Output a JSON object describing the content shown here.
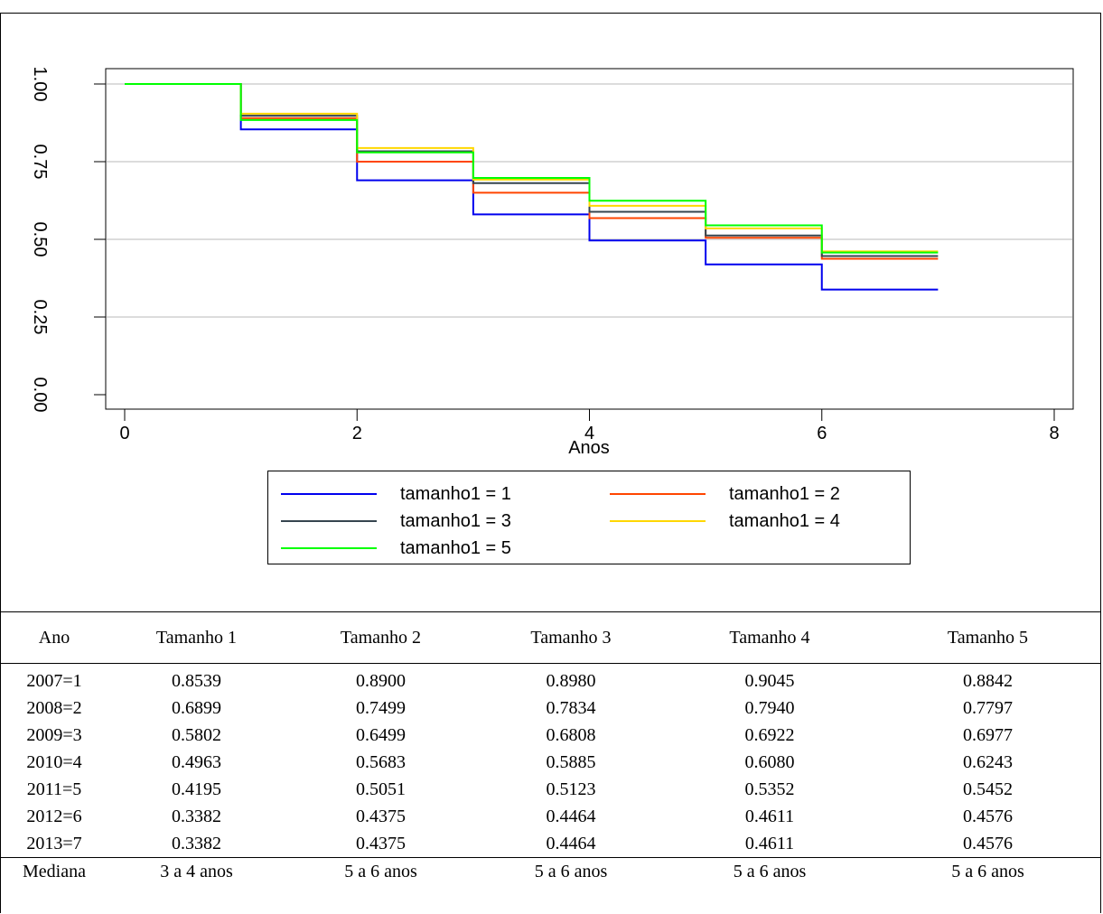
{
  "chart_data": {
    "type": "line",
    "step": true,
    "title": "",
    "xlabel": "Anos",
    "ylabel": "",
    "xlim": [
      0,
      8
    ],
    "ylim": [
      0,
      1
    ],
    "x_ticks": [
      "0",
      "2",
      "4",
      "6",
      "8"
    ],
    "y_ticks": [
      "0.00",
      "0.25",
      "0.50",
      "0.75",
      "1.00"
    ],
    "grid": true,
    "legend_position": "bottom",
    "series": [
      {
        "name": "tamanho1 = 1",
        "color": "#0000ee",
        "x": [
          0,
          1,
          2,
          3,
          4,
          5,
          6,
          7
        ],
        "y": [
          1.0,
          0.8539,
          0.6899,
          0.5802,
          0.4963,
          0.4195,
          0.3382,
          0.3382
        ]
      },
      {
        "name": "tamanho1 = 2",
        "color": "#ff4500",
        "x": [
          0,
          1,
          2,
          3,
          4,
          5,
          6,
          7
        ],
        "y": [
          1.0,
          0.89,
          0.7499,
          0.6499,
          0.5683,
          0.5051,
          0.4375,
          0.4375
        ]
      },
      {
        "name": "tamanho1 = 3",
        "color": "#36454f",
        "x": [
          0,
          1,
          2,
          3,
          4,
          5,
          6,
          7
        ],
        "y": [
          1.0,
          0.898,
          0.7834,
          0.6808,
          0.5885,
          0.5123,
          0.4464,
          0.4464
        ]
      },
      {
        "name": "tamanho1 = 4",
        "color": "#ffd700",
        "x": [
          0,
          1,
          2,
          3,
          4,
          5,
          6,
          7
        ],
        "y": [
          1.0,
          0.9045,
          0.794,
          0.6922,
          0.608,
          0.5352,
          0.4611,
          0.4611
        ]
      },
      {
        "name": "tamanho1 = 5",
        "color": "#00ff00",
        "x": [
          0,
          1,
          2,
          3,
          4,
          5,
          6,
          7
        ],
        "y": [
          1.0,
          0.8842,
          0.7797,
          0.6977,
          0.6243,
          0.5452,
          0.4576,
          0.4576
        ]
      }
    ]
  },
  "table": {
    "headers": [
      "Ano",
      "Tamanho 1",
      "Tamanho 2",
      "Tamanho 3",
      "Tamanho 4",
      "Tamanho 5"
    ],
    "rows": [
      [
        "2007=1",
        "0.8539",
        "0.8900",
        "0.8980",
        "0.9045",
        "0.8842"
      ],
      [
        "2008=2",
        "0.6899",
        "0.7499",
        "0.7834",
        "0.7940",
        "0.7797"
      ],
      [
        "2009=3",
        "0.5802",
        "0.6499",
        "0.6808",
        "0.6922",
        "0.6977"
      ],
      [
        "2010=4",
        "0.4963",
        "0.5683",
        "0.5885",
        "0.6080",
        "0.6243"
      ],
      [
        "2011=5",
        "0.4195",
        "0.5051",
        "0.5123",
        "0.5352",
        "0.5452"
      ],
      [
        "2012=6",
        "0.3382",
        "0.4375",
        "0.4464",
        "0.4611",
        "0.4576"
      ],
      [
        "2013=7",
        "0.3382",
        "0.4375",
        "0.4464",
        "0.4611",
        "0.4576"
      ]
    ],
    "footer": [
      "Mediana",
      "3 a 4 anos",
      "5 a 6 anos",
      "5 a 6 anos",
      "5 a 6 anos",
      "5 a 6 anos"
    ]
  }
}
